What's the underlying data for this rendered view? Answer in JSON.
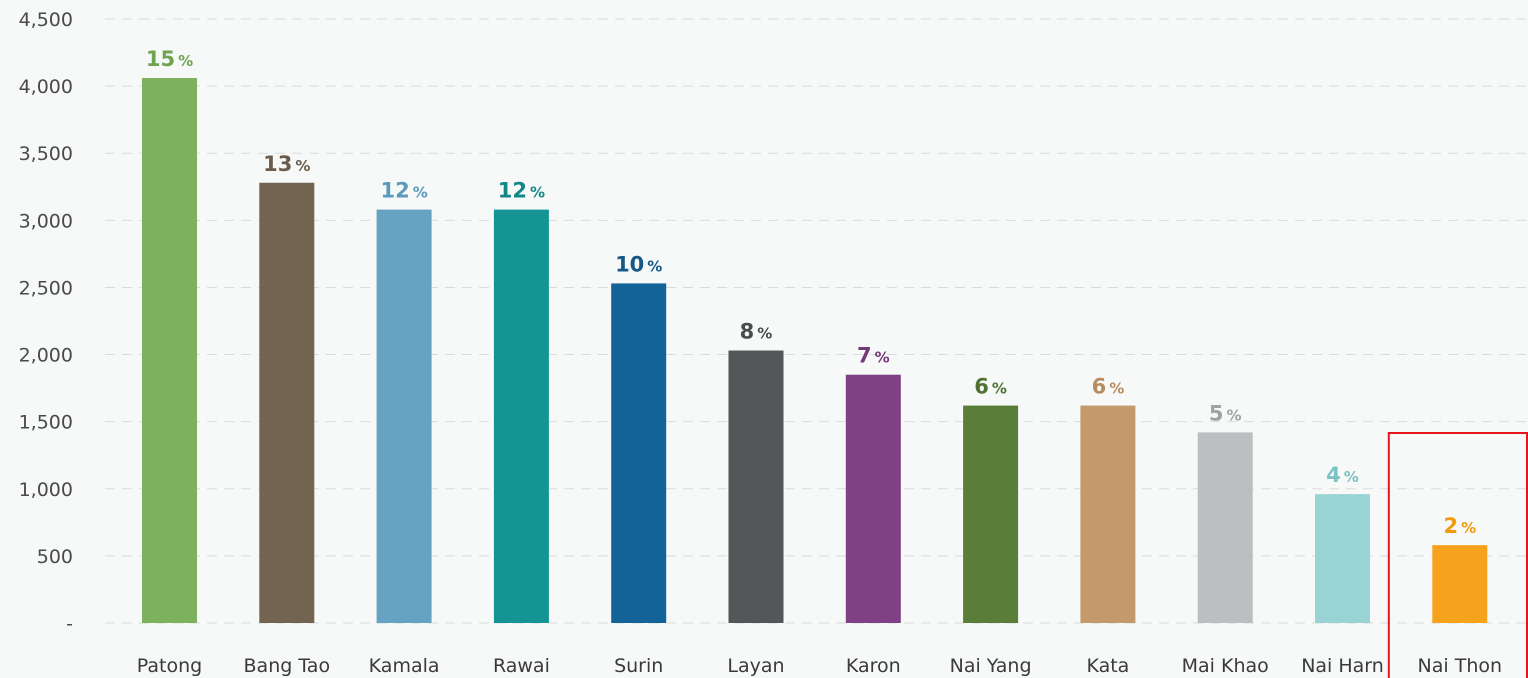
{
  "chart_data": {
    "type": "bar",
    "categories": [
      "Patong",
      "Bang Tao",
      "Kamala",
      "Rawai",
      "Surin",
      "Layan",
      "Karon",
      "Nai Yang",
      "Kata",
      "Mai Khao",
      "Nai Harn",
      "Nai Thon"
    ],
    "values": [
      4060,
      3280,
      3080,
      3080,
      2530,
      2030,
      1850,
      1620,
      1620,
      1420,
      960,
      580
    ],
    "data_labels": [
      "15",
      "13",
      "12",
      "12",
      "10",
      "8",
      "7",
      "6",
      "6",
      "5",
      "4",
      "2"
    ],
    "data_label_unit": "%",
    "colors": [
      "#7db15e",
      "#736452",
      "#66a3c3",
      "#149493",
      "#146398",
      "#555657",
      "#7f4183",
      "#5a7e3a",
      "#c49a6c",
      "#bdbebf",
      "#99d3d4",
      "#f7a21c"
    ],
    "label_colors": [
      "#6fa352",
      "#6a5c4b",
      "#5b9aba",
      "#128786",
      "#14598a",
      "#4a4b4c",
      "#733a78",
      "#4f7233",
      "#b88d5e",
      "#a0a1a2",
      "#7cc2c3",
      "#f19a0f"
    ],
    "y_ticks": [
      {
        "value": 0,
        "label": "-"
      },
      {
        "value": 500,
        "label": "500"
      },
      {
        "value": 1000,
        "label": "1,000"
      },
      {
        "value": 1500,
        "label": "1,500"
      },
      {
        "value": 2000,
        "label": "2,000"
      },
      {
        "value": 2500,
        "label": "2,500"
      },
      {
        "value": 3000,
        "label": "3,000"
      },
      {
        "value": 3500,
        "label": "3,500"
      },
      {
        "value": 4000,
        "label": "4,000"
      },
      {
        "value": 4500,
        "label": "4,500"
      }
    ],
    "ylim": [
      0,
      4500
    ],
    "grid": true,
    "title": "",
    "xlabel": "",
    "ylabel": "",
    "highlighted_category": "Nai Thon",
    "highlight_color": "#e8141b"
  }
}
